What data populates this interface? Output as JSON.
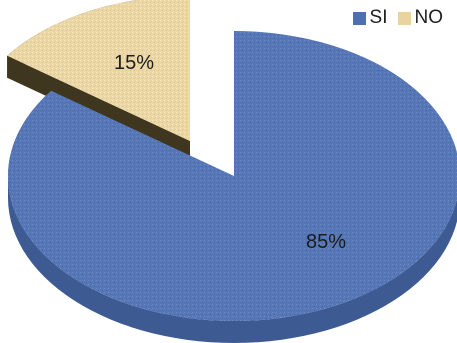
{
  "chart_data": {
    "type": "pie",
    "categories": [
      "SI",
      "NO"
    ],
    "values": [
      85,
      15
    ],
    "labels": [
      "85%",
      "15%"
    ],
    "colors": [
      "#4f6fae",
      "#e9d3a1"
    ],
    "side_colors": [
      "#3e5a93",
      "#4d4226"
    ],
    "legend_position": "top-right",
    "exploded": "NO",
    "style": "3d"
  }
}
